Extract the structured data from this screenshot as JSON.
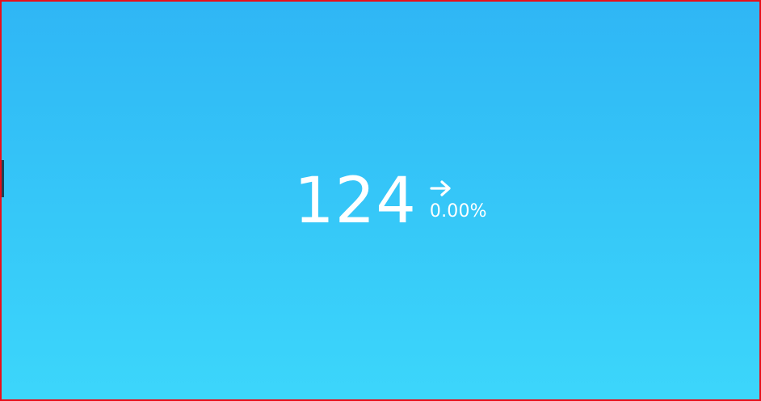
{
  "widget": {
    "value": "124",
    "trend_icon": "arrow-right-icon",
    "change_percent": "0.00%",
    "colors": {
      "background_top": "#2fb6f5",
      "background_bottom": "#3cd6fb",
      "text": "#ffffff",
      "border": "#e8101a"
    }
  }
}
